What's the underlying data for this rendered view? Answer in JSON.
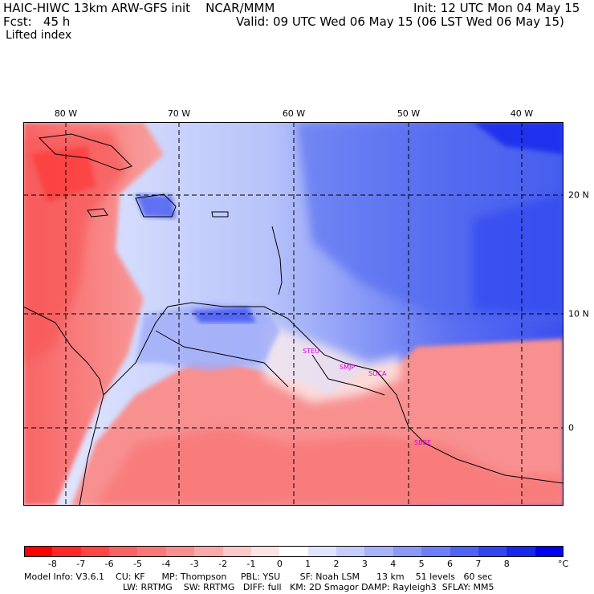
{
  "header": {
    "title": "HAIC-HIWC 13km ARW-GFS init    NCAR/MMM",
    "init": "Init: 12 UTC Mon 04 May 15",
    "fcst": "Fcst:   45 h",
    "valid": "Valid: 09 UTC Wed 06 May 15 (06 LST Wed 06 May 15)",
    "field": "Lifted index"
  },
  "map": {
    "lon_labels": [
      "80 W",
      "70 W",
      "60 W",
      "50 W",
      "40 W"
    ],
    "lat_labels": [
      "20 N",
      "10 N",
      "0"
    ],
    "stations": [
      "STEU",
      "SMJP",
      "SOCA",
      "SBBE"
    ],
    "colors": {
      "land_line": "#000000",
      "station": "#d400d4",
      "grid": "#000000"
    }
  },
  "colorbar": {
    "labels": [
      "-8",
      "-7",
      "-6",
      "-5",
      "-4",
      "-3",
      "-2",
      "-1",
      "0",
      "1",
      "2",
      "3",
      "4",
      "5",
      "6",
      "7",
      "8"
    ],
    "unit": "°C",
    "colors": [
      "#ff0000",
      "#ff2828",
      "#ff4646",
      "#f86464",
      "#f87878",
      "#f89090",
      "#f8aaaa",
      "#fac8c8",
      "#fce4e4",
      "#ffffff",
      "#e0e4ff",
      "#c4ccfa",
      "#a8b2f8",
      "#8c98f6",
      "#6e7ef4",
      "#5064f2",
      "#3246f0",
      "#1428ee",
      "#0000f0"
    ]
  },
  "model_info": {
    "line1": "Model Info: V3.6.1    CU: KF      MP: Thompson     PBL: YSU       SF: Noah LSM      13 km    51 levels   60 sec",
    "line2": "LW: RRTMG    SW: RRTMG   DIFF: full   KM: 2D Smagor DAMP: Rayleigh3  SFLAY: MM5"
  }
}
